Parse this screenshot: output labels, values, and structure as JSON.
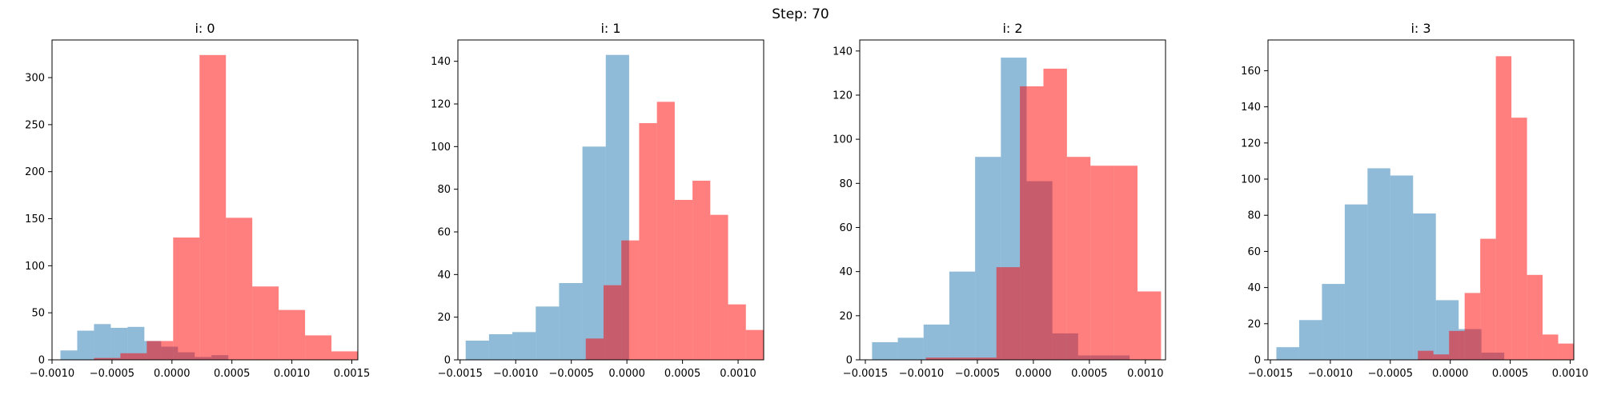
{
  "figure": {
    "suptitle": "Step: 70"
  },
  "chart_data": [
    {
      "type": "bar",
      "title": "i: 0",
      "xlim": [
        -0.001,
        0.00155
      ],
      "ylim": [
        0,
        340
      ],
      "xticks": [
        {
          "value": -0.001,
          "label": "−0.0010"
        },
        {
          "value": -0.0005,
          "label": "−0.0005"
        },
        {
          "value": 0.0,
          "label": "0.0000"
        },
        {
          "value": 0.0005,
          "label": "0.0005"
        },
        {
          "value": 0.001,
          "label": "0.0010"
        },
        {
          "value": 0.0015,
          "label": "0.0015"
        }
      ],
      "yticks": [
        {
          "value": 0,
          "label": "0"
        },
        {
          "value": 50,
          "label": "50"
        },
        {
          "value": 100,
          "label": "100"
        },
        {
          "value": 150,
          "label": "150"
        },
        {
          "value": 200,
          "label": "200"
        },
        {
          "value": 250,
          "label": "250"
        },
        {
          "value": 300,
          "label": "300"
        }
      ],
      "series": [
        {
          "color": "#1f77b4",
          "alpha": 0.5,
          "edges": [
            -0.00093,
            -0.00079,
            -0.00065,
            -0.00051,
            -0.00037,
            -0.00023,
            -9e-05,
            5e-05,
            0.00019,
            0.00033,
            0.00047
          ],
          "counts": [
            10,
            31,
            38,
            34,
            35,
            20,
            14,
            8,
            3,
            5
          ]
        },
        {
          "color": "#ff0000",
          "alpha": 0.5,
          "edges": [
            -0.00065,
            -0.00043,
            -0.00021,
            1e-05,
            0.00023,
            0.00045,
            0.00067,
            0.00089,
            0.00111,
            0.00133,
            0.00155
          ],
          "counts": [
            2,
            7,
            20,
            130,
            324,
            151,
            78,
            53,
            26,
            9
          ]
        }
      ]
    },
    {
      "type": "bar",
      "title": "i: 1",
      "xlim": [
        -0.00152,
        0.00123
      ],
      "ylim": [
        0,
        150
      ],
      "xticks": [
        {
          "value": -0.0015,
          "label": "−0.0015"
        },
        {
          "value": -0.001,
          "label": "−0.0010"
        },
        {
          "value": -0.0005,
          "label": "−0.0005"
        },
        {
          "value": 0.0,
          "label": "0.0000"
        },
        {
          "value": 0.0005,
          "label": "0.0005"
        },
        {
          "value": 0.001,
          "label": "0.0010"
        }
      ],
      "yticks": [
        {
          "value": 0,
          "label": "0"
        },
        {
          "value": 20,
          "label": "20"
        },
        {
          "value": 40,
          "label": "40"
        },
        {
          "value": 60,
          "label": "60"
        },
        {
          "value": 80,
          "label": "80"
        },
        {
          "value": 100,
          "label": "100"
        },
        {
          "value": 120,
          "label": "120"
        },
        {
          "value": 140,
          "label": "140"
        }
      ],
      "series": [
        {
          "color": "#1f77b4",
          "alpha": 0.5,
          "edges": [
            -0.00145,
            -0.00124,
            -0.00103,
            -0.00082,
            -0.00061,
            -0.0004,
            -0.00019,
            2e-05,
            0.00023,
            0.00044,
            0.00065
          ],
          "counts": [
            9,
            12,
            13,
            25,
            36,
            100,
            143,
            0,
            0,
            0
          ]
        },
        {
          "color": "#ff0000",
          "alpha": 0.5,
          "edges": [
            -0.00037,
            -0.00021,
            -5e-05,
            0.00011,
            0.00027,
            0.00043,
            0.00059,
            0.00075,
            0.00091,
            0.00107,
            0.00123
          ],
          "counts": [
            10,
            35,
            56,
            111,
            121,
            75,
            84,
            68,
            26,
            14
          ]
        }
      ]
    },
    {
      "type": "bar",
      "title": "i: 2",
      "xlim": [
        -0.00155,
        0.00118
      ],
      "ylim": [
        0,
        145
      ],
      "xticks": [
        {
          "value": -0.0015,
          "label": "−0.0015"
        },
        {
          "value": -0.001,
          "label": "−0.0010"
        },
        {
          "value": -0.0005,
          "label": "−0.0005"
        },
        {
          "value": 0.0,
          "label": "0.0000"
        },
        {
          "value": 0.0005,
          "label": "0.0005"
        },
        {
          "value": 0.001,
          "label": "0.0010"
        }
      ],
      "yticks": [
        {
          "value": 0,
          "label": "0"
        },
        {
          "value": 20,
          "label": "20"
        },
        {
          "value": 40,
          "label": "40"
        },
        {
          "value": 60,
          "label": "60"
        },
        {
          "value": 80,
          "label": "80"
        },
        {
          "value": 100,
          "label": "100"
        },
        {
          "value": 120,
          "label": "120"
        },
        {
          "value": 140,
          "label": "140"
        }
      ],
      "series": [
        {
          "color": "#1f77b4",
          "alpha": 0.5,
          "edges": [
            -0.00144,
            -0.00121,
            -0.00098,
            -0.00075,
            -0.00052,
            -0.00029,
            -6e-05,
            0.00017,
            0.0004,
            0.00063,
            0.00086
          ],
          "counts": [
            8,
            10,
            16,
            40,
            92,
            137,
            81,
            12,
            2,
            2
          ]
        },
        {
          "color": "#ff0000",
          "alpha": 0.5,
          "edges": [
            -0.00096,
            -0.00075,
            -0.00054,
            -0.00033,
            -0.00012,
            9e-05,
            0.0003,
            0.00051,
            0.00072,
            0.00093,
            0.00114
          ],
          "counts": [
            1,
            1,
            1,
            42,
            124,
            132,
            92,
            88,
            88,
            31
          ]
        }
      ]
    },
    {
      "type": "bar",
      "title": "i: 3",
      "xlim": [
        -0.00152,
        0.00103
      ],
      "ylim": [
        0,
        177
      ],
      "xticks": [
        {
          "value": -0.0015,
          "label": "−0.0015"
        },
        {
          "value": -0.001,
          "label": "−0.0010"
        },
        {
          "value": -0.0005,
          "label": "−0.0005"
        },
        {
          "value": 0.0,
          "label": "0.0000"
        },
        {
          "value": 0.0005,
          "label": "0.0005"
        },
        {
          "value": 0.001,
          "label": "0.0010"
        }
      ],
      "yticks": [
        {
          "value": 0,
          "label": "0"
        },
        {
          "value": 20,
          "label": "20"
        },
        {
          "value": 40,
          "label": "40"
        },
        {
          "value": 60,
          "label": "60"
        },
        {
          "value": 80,
          "label": "80"
        },
        {
          "value": 100,
          "label": "100"
        },
        {
          "value": 120,
          "label": "120"
        },
        {
          "value": 140,
          "label": "140"
        },
        {
          "value": 160,
          "label": "160"
        }
      ],
      "series": [
        {
          "color": "#1f77b4",
          "alpha": 0.5,
          "edges": [
            -0.00145,
            -0.00126,
            -0.00107,
            -0.00088,
            -0.00069,
            -0.0005,
            -0.00031,
            -0.00012,
            7e-05,
            0.00026,
            0.00045
          ],
          "counts": [
            7,
            22,
            42,
            86,
            106,
            102,
            81,
            33,
            17,
            4
          ]
        },
        {
          "color": "#ff0000",
          "alpha": 0.5,
          "edges": [
            -0.00027,
            -0.00014,
            -1e-05,
            0.00012,
            0.00025,
            0.00038,
            0.00051,
            0.00064,
            0.00077,
            0.0009,
            0.00103
          ],
          "counts": [
            5,
            3,
            16,
            37,
            67,
            168,
            134,
            47,
            14,
            9
          ]
        }
      ]
    }
  ]
}
